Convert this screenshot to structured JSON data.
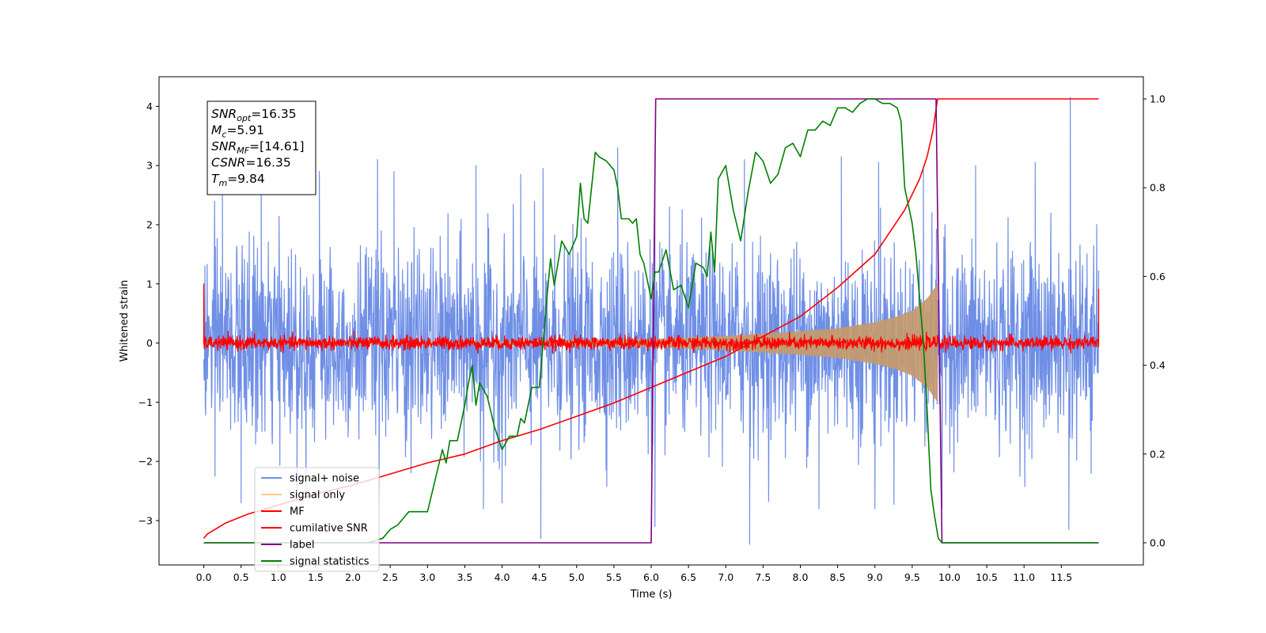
{
  "chart_data": {
    "type": "line",
    "title": "",
    "xlabel": "Time (s)",
    "ylabel": "Whitened strain",
    "xlim": [
      -0.6,
      12.6
    ],
    "ylim_left": [
      -3.75,
      4.5
    ],
    "ylim_right": [
      -0.05,
      1.05
    ],
    "x_ticks": [
      0.0,
      0.5,
      1.0,
      1.5,
      2.0,
      2.5,
      3.0,
      3.5,
      4.0,
      4.5,
      5.0,
      5.5,
      6.0,
      6.5,
      7.0,
      7.5,
      8.0,
      8.5,
      9.0,
      9.5,
      10.0,
      10.5,
      11.0,
      11.5
    ],
    "x_tick_labels": [
      "0.0",
      "0.5",
      "1.0",
      "1.5",
      "2.0",
      "2.5",
      "3.0",
      "3.5",
      "4.0",
      "4.5",
      "5.0",
      "5.5",
      "6.0",
      "6.5",
      "7.0",
      "7.5",
      "8.0",
      "8.5",
      "9.0",
      "9.5",
      "10.0",
      "10.5",
      "11.0",
      "11.5"
    ],
    "y_left_ticks": [
      -3,
      -2,
      -1,
      0,
      1,
      2,
      3,
      4
    ],
    "y_left_tick_labels": [
      "−3",
      "−2",
      "−1",
      "0",
      "1",
      "2",
      "3",
      "4"
    ],
    "y_right_ticks": [
      0.0,
      0.2,
      0.4,
      0.6,
      0.8,
      1.0
    ],
    "y_right_tick_labels": [
      "0.0",
      "0.2",
      "0.4",
      "0.6",
      "0.8",
      "1.0"
    ],
    "grid": false,
    "legend_position": "lower-left",
    "series": [
      {
        "name": "signal+ noise",
        "axis": "left",
        "color": "#6f8fe6",
        "kind": "noise",
        "x_range": [
          0.0,
          12.0
        ],
        "amplitude_envelope": [
          [
            0.0,
            1.3
          ],
          [
            6.0,
            1.3
          ],
          [
            9.8,
            1.3
          ],
          [
            12.0,
            1.3
          ]
        ],
        "peaks": [
          {
            "x": 0.25,
            "y": 2.6
          },
          {
            "x": 0.77,
            "y": 3.05
          },
          {
            "x": 1.55,
            "y": 2.9
          },
          {
            "x": 2.33,
            "y": 3.1
          },
          {
            "x": 2.55,
            "y": 2.9
          },
          {
            "x": 3.65,
            "y": 3.0
          },
          {
            "x": 4.25,
            "y": 2.85
          },
          {
            "x": 4.55,
            "y": 2.95
          },
          {
            "x": 5.55,
            "y": 3.3
          },
          {
            "x": 6.05,
            "y": 2.95
          },
          {
            "x": 7.25,
            "y": 3.1
          },
          {
            "x": 8.55,
            "y": 3.15
          },
          {
            "x": 9.05,
            "y": 3.05
          },
          {
            "x": 9.65,
            "y": 2.95
          },
          {
            "x": 10.35,
            "y": 3.0
          },
          {
            "x": 11.15,
            "y": 3.05
          },
          {
            "x": 11.62,
            "y": 4.15
          }
        ],
        "troughs": [
          {
            "x": 0.15,
            "y": -2.25
          },
          {
            "x": 0.5,
            "y": -2.7
          },
          {
            "x": 1.25,
            "y": -2.7
          },
          {
            "x": 2.35,
            "y": -2.6
          },
          {
            "x": 3.75,
            "y": -2.8
          },
          {
            "x": 4.0,
            "y": -2.7
          },
          {
            "x": 4.52,
            "y": -3.3
          },
          {
            "x": 6.05,
            "y": -3.1
          },
          {
            "x": 7.32,
            "y": -3.4
          },
          {
            "x": 8.25,
            "y": -2.8
          },
          {
            "x": 9.0,
            "y": -2.8
          },
          {
            "x": 9.9,
            "y": -2.8
          },
          {
            "x": 11.6,
            "y": -3.15
          },
          {
            "x": 11.9,
            "y": -2.2
          }
        ]
      },
      {
        "name": "signal only",
        "axis": "left",
        "color": "#c49a6c",
        "legend_color": "#ffc983",
        "kind": "chirp-envelope",
        "x_range": [
          0.0,
          9.84
        ],
        "amplitude_envelope": [
          [
            0.0,
            0.01
          ],
          [
            4.0,
            0.03
          ],
          [
            6.0,
            0.07
          ],
          [
            7.0,
            0.12
          ],
          [
            8.0,
            0.2
          ],
          [
            8.5,
            0.25
          ],
          [
            9.0,
            0.35
          ],
          [
            9.3,
            0.45
          ],
          [
            9.5,
            0.55
          ],
          [
            9.7,
            0.75
          ],
          [
            9.84,
            1.0
          ]
        ]
      },
      {
        "name": "MF",
        "axis": "left",
        "color": "#ff0000",
        "kind": "noise",
        "x_range": [
          0.0,
          12.0
        ],
        "amplitude_envelope": [
          [
            0.0,
            0.09
          ],
          [
            12.0,
            0.09
          ]
        ],
        "spikes": [
          {
            "x": 0.0,
            "y": 1.0
          },
          {
            "x": 12.0,
            "y": 0.92
          }
        ]
      },
      {
        "name": "cumilative SNR",
        "axis": "right",
        "color": "#ff0000",
        "kind": "line",
        "x": [
          0.0,
          0.05,
          0.3,
          0.6,
          1.0,
          1.5,
          2.0,
          2.5,
          3.0,
          3.5,
          4.0,
          4.5,
          5.0,
          5.5,
          6.0,
          6.5,
          7.0,
          7.5,
          8.0,
          8.5,
          9.0,
          9.2,
          9.4,
          9.6,
          9.7,
          9.78,
          9.84,
          10.0,
          12.0
        ],
        "y": [
          0.01,
          0.02,
          0.045,
          0.065,
          0.085,
          0.11,
          0.13,
          0.155,
          0.18,
          0.2,
          0.23,
          0.255,
          0.285,
          0.315,
          0.35,
          0.385,
          0.42,
          0.465,
          0.51,
          0.575,
          0.65,
          0.7,
          0.75,
          0.82,
          0.87,
          0.93,
          1.0,
          1.0,
          1.0
        ]
      },
      {
        "name": "label",
        "axis": "right",
        "color": "#800080",
        "kind": "line",
        "x": [
          0.0,
          6.0,
          6.06,
          9.82,
          9.9,
          12.0
        ],
        "y": [
          0.0,
          0.0,
          1.0,
          1.0,
          0.0,
          0.0
        ]
      },
      {
        "name": "signal statistics",
        "axis": "right",
        "color": "#008000",
        "kind": "line",
        "x": [
          0.0,
          0.5,
          1.0,
          1.5,
          2.0,
          2.2,
          2.4,
          2.5,
          2.6,
          2.75,
          2.85,
          3.0,
          3.1,
          3.2,
          3.25,
          3.3,
          3.4,
          3.5,
          3.55,
          3.6,
          3.65,
          3.7,
          3.8,
          3.9,
          4.0,
          4.1,
          4.2,
          4.25,
          4.3,
          4.4,
          4.5,
          4.6,
          4.65,
          4.7,
          4.8,
          4.9,
          5.0,
          5.05,
          5.1,
          5.15,
          5.2,
          5.25,
          5.3,
          5.4,
          5.5,
          5.55,
          5.6,
          5.65,
          5.7,
          5.75,
          5.8,
          5.85,
          5.9,
          6.0,
          6.05,
          6.1,
          6.2,
          6.3,
          6.4,
          6.5,
          6.6,
          6.7,
          6.75,
          6.8,
          6.85,
          6.9,
          7.0,
          7.1,
          7.2,
          7.3,
          7.4,
          7.5,
          7.6,
          7.7,
          7.8,
          7.9,
          8.0,
          8.1,
          8.2,
          8.3,
          8.4,
          8.5,
          8.6,
          8.7,
          8.8,
          8.9,
          9.0,
          9.1,
          9.2,
          9.3,
          9.35,
          9.4,
          9.5,
          9.55,
          9.6,
          9.65,
          9.7,
          9.75,
          9.8,
          9.85,
          9.9,
          10.0,
          12.0
        ],
        "y": [
          0.0,
          0.0,
          0.0,
          0.0,
          0.0,
          0.0,
          0.01,
          0.03,
          0.04,
          0.07,
          0.07,
          0.07,
          0.14,
          0.21,
          0.18,
          0.23,
          0.23,
          0.31,
          0.36,
          0.4,
          0.31,
          0.36,
          0.33,
          0.26,
          0.21,
          0.24,
          0.24,
          0.28,
          0.27,
          0.35,
          0.35,
          0.55,
          0.64,
          0.58,
          0.68,
          0.65,
          0.69,
          0.81,
          0.73,
          0.72,
          0.8,
          0.88,
          0.87,
          0.86,
          0.84,
          0.8,
          0.73,
          0.73,
          0.73,
          0.72,
          0.73,
          0.65,
          0.63,
          0.55,
          0.61,
          0.61,
          0.66,
          0.57,
          0.58,
          0.53,
          0.63,
          0.62,
          0.6,
          0.7,
          0.61,
          0.82,
          0.85,
          0.75,
          0.68,
          0.79,
          0.88,
          0.86,
          0.81,
          0.83,
          0.89,
          0.9,
          0.87,
          0.93,
          0.93,
          0.95,
          0.94,
          0.98,
          0.98,
          0.97,
          0.99,
          1.0,
          1.0,
          0.99,
          0.99,
          0.98,
          0.95,
          0.8,
          0.72,
          0.65,
          0.55,
          0.45,
          0.3,
          0.12,
          0.06,
          0.01,
          0.0,
          0.0,
          0.0
        ]
      }
    ],
    "annotation": {
      "lines": [
        {
          "base": "SNR",
          "sub": "opt",
          "value": "=16.35"
        },
        {
          "base": "M",
          "sub": "c",
          "value": "=5.91"
        },
        {
          "base": "SNR",
          "sub": "MF",
          "value": "=[14.61]"
        },
        {
          "base": "CSNR",
          "sub": "",
          "value": "=16.35"
        },
        {
          "base": "T",
          "sub": "m",
          "value": "=9.84"
        }
      ]
    }
  }
}
